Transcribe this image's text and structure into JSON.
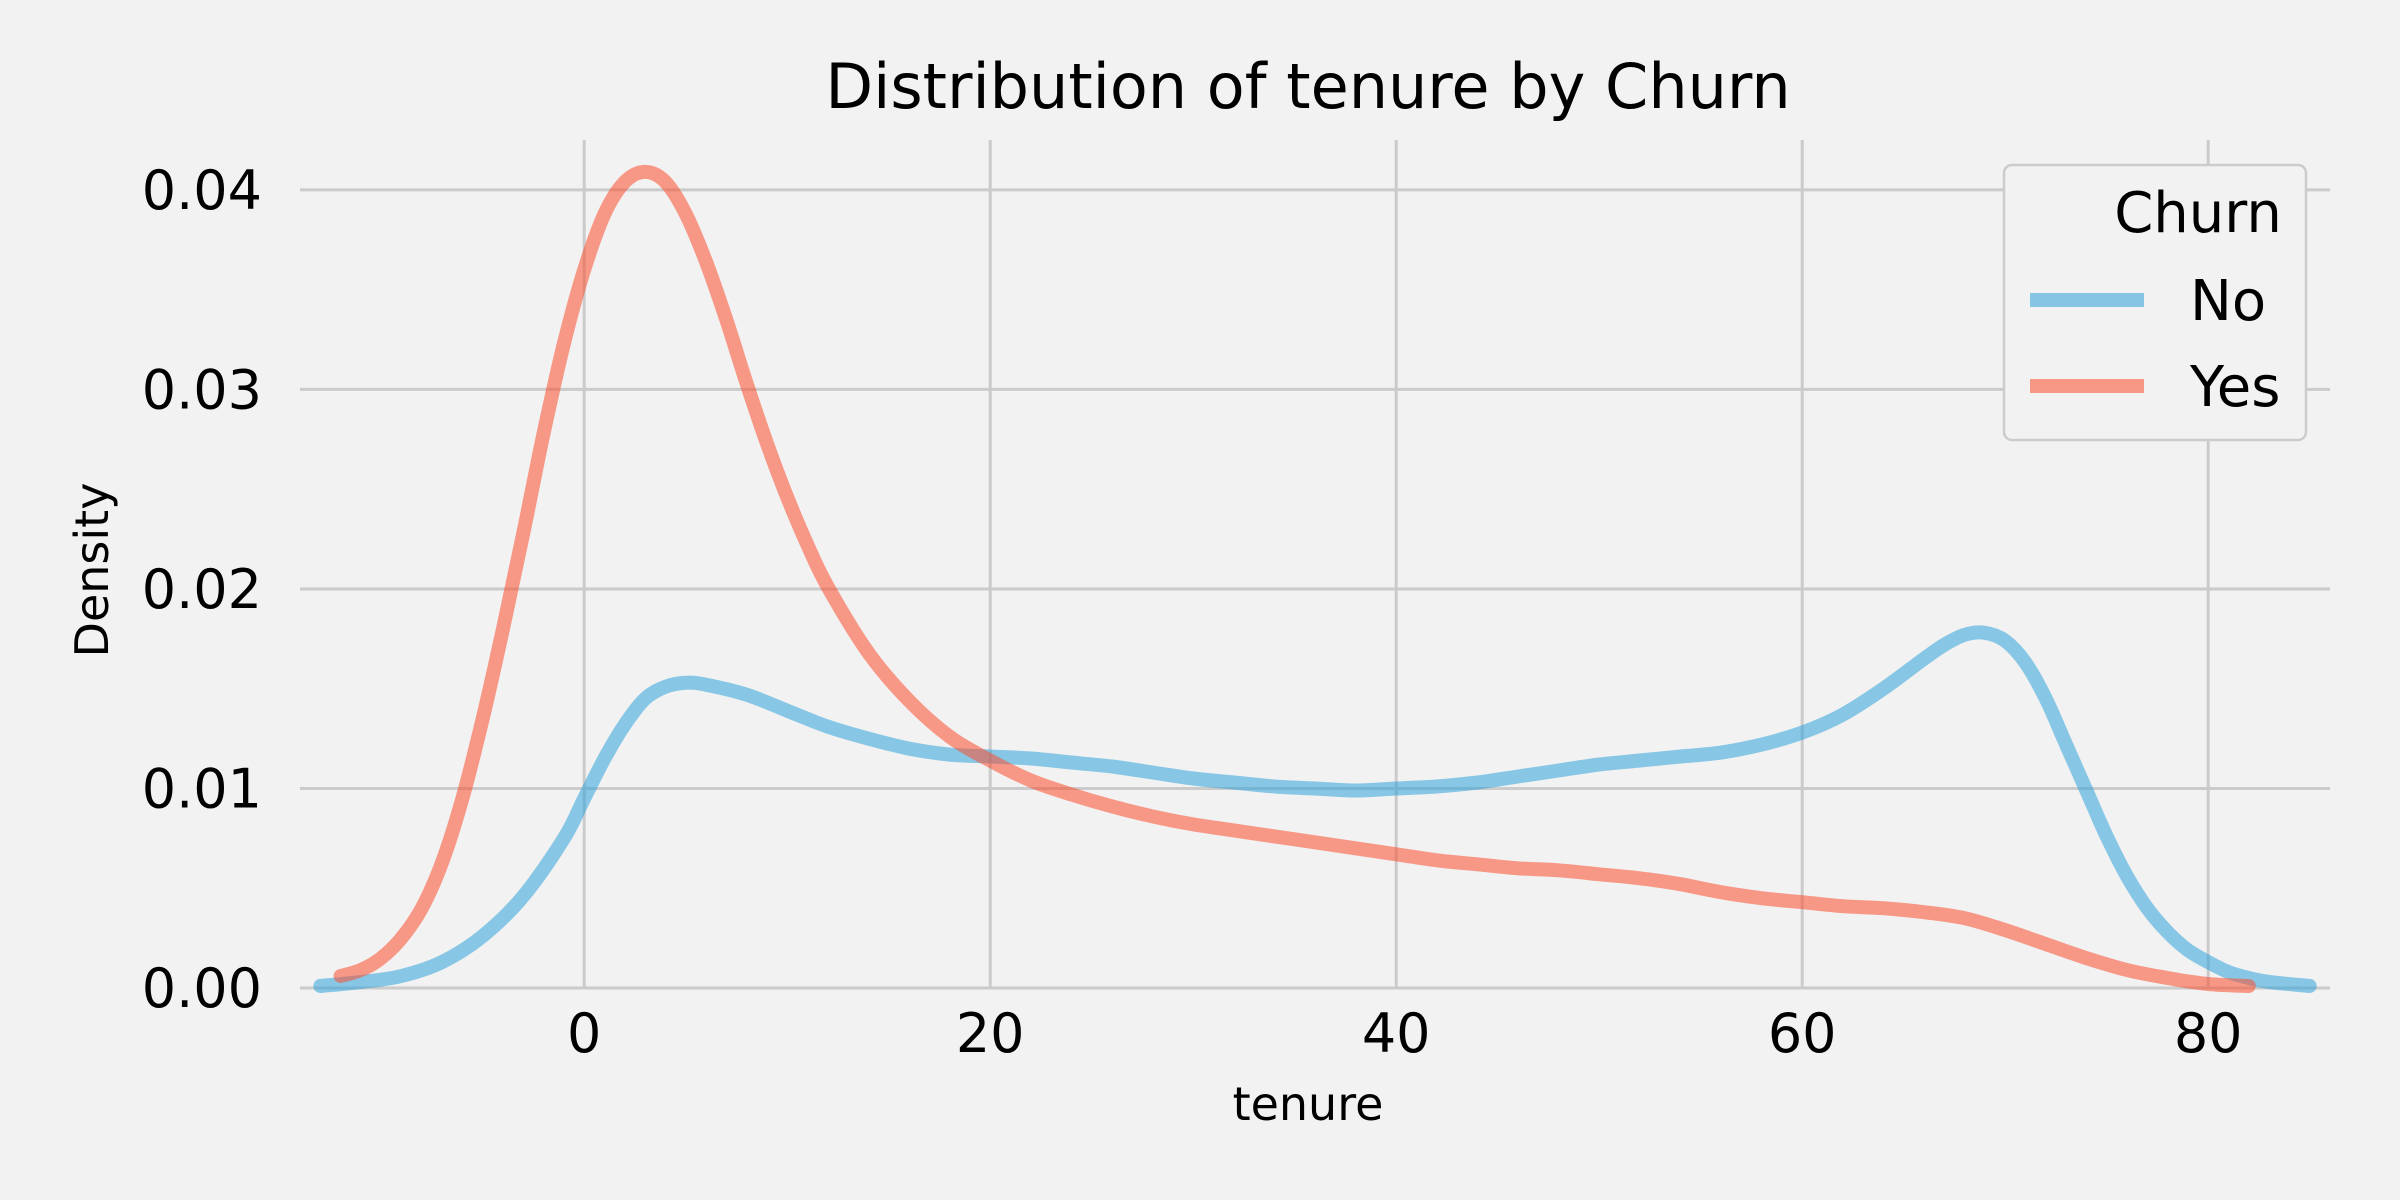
{
  "chart_data": {
    "type": "line",
    "title": "Distribution of tenure by Churn",
    "xlabel": "tenure",
    "ylabel": "Density",
    "xlim": [
      -14,
      86
    ],
    "ylim": [
      0,
      0.0425
    ],
    "xticks": [
      0,
      20,
      40,
      60,
      80
    ],
    "yticks": [
      0.0,
      0.01,
      0.02,
      0.03,
      0.04
    ],
    "ytick_labels": [
      "0.00",
      "0.01",
      "0.02",
      "0.03",
      "0.04"
    ],
    "grid": true,
    "legend": {
      "title": "Churn",
      "position": "top-right"
    },
    "series": [
      {
        "name": "No",
        "color": "#30a2da",
        "points": [
          [
            -13,
            0.0001
          ],
          [
            -11,
            0.0003
          ],
          [
            -9,
            0.0006
          ],
          [
            -7,
            0.0013
          ],
          [
            -5,
            0.0026
          ],
          [
            -3,
            0.0046
          ],
          [
            -1,
            0.0075
          ],
          [
            0,
            0.0095
          ],
          [
            1,
            0.0115
          ],
          [
            2,
            0.0132
          ],
          [
            3,
            0.0145
          ],
          [
            4,
            0.0151
          ],
          [
            5,
            0.0153
          ],
          [
            6,
            0.0152
          ],
          [
            8,
            0.0147
          ],
          [
            10,
            0.0139
          ],
          [
            12,
            0.0131
          ],
          [
            14,
            0.0125
          ],
          [
            16,
            0.012
          ],
          [
            18,
            0.0117
          ],
          [
            20,
            0.0116
          ],
          [
            22,
            0.0115
          ],
          [
            24,
            0.0113
          ],
          [
            26,
            0.0111
          ],
          [
            28,
            0.0108
          ],
          [
            30,
            0.0105
          ],
          [
            32,
            0.0103
          ],
          [
            34,
            0.0101
          ],
          [
            36,
            0.01
          ],
          [
            38,
            0.0099
          ],
          [
            40,
            0.01
          ],
          [
            42,
            0.0101
          ],
          [
            44,
            0.0103
          ],
          [
            46,
            0.0106
          ],
          [
            48,
            0.0109
          ],
          [
            50,
            0.0112
          ],
          [
            52,
            0.0114
          ],
          [
            54,
            0.0116
          ],
          [
            56,
            0.0118
          ],
          [
            58,
            0.0122
          ],
          [
            60,
            0.0128
          ],
          [
            62,
            0.0137
          ],
          [
            64,
            0.015
          ],
          [
            66,
            0.0165
          ],
          [
            67,
            0.0172
          ],
          [
            68,
            0.0177
          ],
          [
            69,
            0.0178
          ],
          [
            70,
            0.0174
          ],
          [
            71,
            0.0163
          ],
          [
            72,
            0.0145
          ],
          [
            73,
            0.0122
          ],
          [
            74,
            0.0099
          ],
          [
            75,
            0.0076
          ],
          [
            76,
            0.0056
          ],
          [
            77,
            0.004
          ],
          [
            78,
            0.0028
          ],
          [
            79,
            0.0019
          ],
          [
            80,
            0.0013
          ],
          [
            81,
            0.0008
          ],
          [
            82,
            0.0005
          ],
          [
            83,
            0.0003
          ],
          [
            85,
            0.0001
          ]
        ]
      },
      {
        "name": "Yes",
        "color": "#fc4f30",
        "points": [
          [
            -12,
            0.0006
          ],
          [
            -11,
            0.0009
          ],
          [
            -10,
            0.0015
          ],
          [
            -9,
            0.0025
          ],
          [
            -8,
            0.004
          ],
          [
            -7,
            0.0063
          ],
          [
            -6,
            0.0095
          ],
          [
            -5,
            0.0135
          ],
          [
            -4,
            0.018
          ],
          [
            -3,
            0.0228
          ],
          [
            -2,
            0.0278
          ],
          [
            -1,
            0.0323
          ],
          [
            0,
            0.036
          ],
          [
            1,
            0.0388
          ],
          [
            2,
            0.0404
          ],
          [
            3,
            0.0409
          ],
          [
            4,
            0.0404
          ],
          [
            5,
            0.0388
          ],
          [
            6,
            0.0364
          ],
          [
            7,
            0.0335
          ],
          [
            8,
            0.0303
          ],
          [
            9,
            0.0273
          ],
          [
            10,
            0.0246
          ],
          [
            11,
            0.0222
          ],
          [
            12,
            0.0201
          ],
          [
            14,
            0.0168
          ],
          [
            16,
            0.0144
          ],
          [
            18,
            0.0126
          ],
          [
            20,
            0.0114
          ],
          [
            22,
            0.0104
          ],
          [
            24,
            0.0097
          ],
          [
            26,
            0.0091
          ],
          [
            28,
            0.0086
          ],
          [
            30,
            0.0082
          ],
          [
            32,
            0.0079
          ],
          [
            34,
            0.0076
          ],
          [
            36,
            0.0073
          ],
          [
            38,
            0.007
          ],
          [
            40,
            0.0067
          ],
          [
            42,
            0.0064
          ],
          [
            44,
            0.0062
          ],
          [
            46,
            0.006
          ],
          [
            48,
            0.0059
          ],
          [
            50,
            0.0057
          ],
          [
            52,
            0.0055
          ],
          [
            54,
            0.0052
          ],
          [
            56,
            0.0048
          ],
          [
            58,
            0.0045
          ],
          [
            60,
            0.0043
          ],
          [
            62,
            0.0041
          ],
          [
            64,
            0.004
          ],
          [
            66,
            0.0038
          ],
          [
            68,
            0.0035
          ],
          [
            70,
            0.0029
          ],
          [
            72,
            0.0022
          ],
          [
            74,
            0.0015
          ],
          [
            76,
            0.0009
          ],
          [
            78,
            0.0005
          ],
          [
            80,
            0.0002
          ],
          [
            82,
            0.0001
          ]
        ]
      }
    ]
  }
}
